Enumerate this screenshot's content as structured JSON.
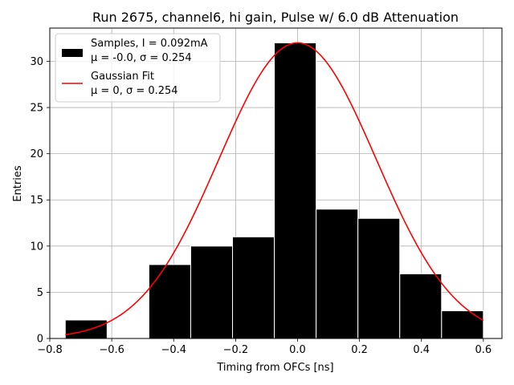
{
  "chart_data": {
    "type": "bar",
    "title": "Run 2675, channel6, hi gain, Pulse w/ 6.0 dB Attenuation",
    "xlabel": "Timing from OFCs [ns]",
    "ylabel": "Entries",
    "xlim": [
      -0.8,
      0.66
    ],
    "ylim": [
      0,
      33.6
    ],
    "x_ticks": [
      -0.8,
      -0.6,
      -0.4,
      -0.2,
      0.0,
      0.2,
      0.4,
      0.6
    ],
    "x_tick_labels": [
      "−0.8",
      "−0.6",
      "−0.4",
      "−0.2",
      "0.0",
      "0.2",
      "0.4",
      "0.6"
    ],
    "y_ticks": [
      0,
      5,
      10,
      15,
      20,
      25,
      30
    ],
    "y_tick_labels": [
      "0",
      "5",
      "10",
      "15",
      "20",
      "25",
      "30"
    ],
    "grid": true,
    "legend_position": "top-left",
    "histogram": {
      "name_line1": "Samples, I = 0.092mA",
      "name_line2": "μ = -0.0, σ = 0.254",
      "color": "#000000",
      "bin_edges": [
        -0.75,
        -0.615,
        -0.48,
        -0.345,
        -0.21,
        -0.075,
        0.06,
        0.195,
        0.33,
        0.465,
        0.6
      ],
      "counts": [
        2,
        0,
        8,
        10,
        11,
        32,
        14,
        13,
        7,
        3
      ]
    },
    "fit": {
      "name_line1": "Gaussian Fit",
      "name_line2": "μ = 0, σ = 0.254",
      "color": "#ff0000",
      "mu": 0,
      "sigma": 0.254,
      "amplitude": 32,
      "x_range": [
        -0.75,
        0.6
      ]
    }
  }
}
